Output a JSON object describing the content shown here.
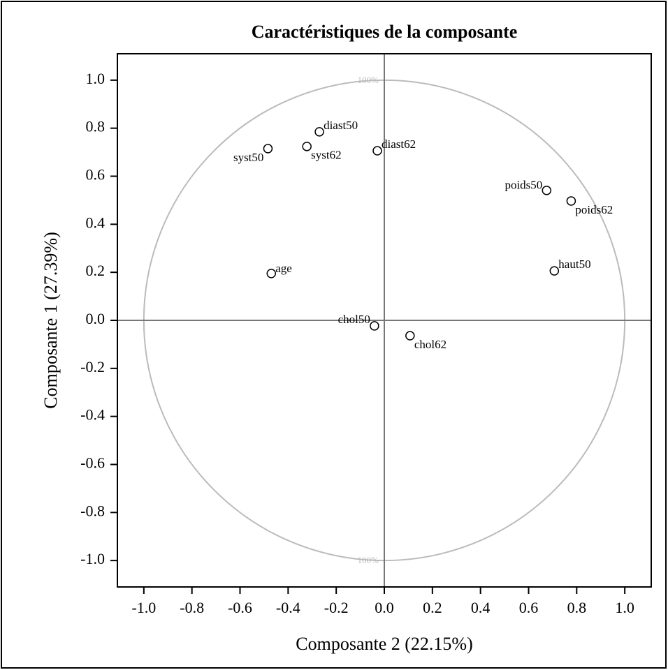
{
  "chart_data": {
    "type": "scatter",
    "title": "Caractéristiques de la composante",
    "xlabel": "Composante 2 (22.15%)",
    "ylabel": "Composante 1 (27.39%)",
    "circle_label": "100%",
    "labels": [
      "syst50",
      "diast50",
      "syst62",
      "diast62",
      "poids50",
      "poids62",
      "age",
      "haut50",
      "chol50",
      "chol62"
    ],
    "x": [
      -0.484,
      -0.27,
      -0.322,
      -0.029,
      0.675,
      0.777,
      -0.47,
      0.707,
      -0.041,
      0.107
    ],
    "y": [
      0.715,
      0.785,
      0.724,
      0.706,
      0.541,
      0.497,
      0.195,
      0.206,
      -0.023,
      -0.064
    ],
    "xlim": [
      -1.11,
      1.11
    ],
    "ylim": [
      -1.11,
      1.11
    ],
    "xticks": [
      {
        "value": -1,
        "label": "-1.0"
      },
      -0.8,
      -0.6,
      -0.4,
      -0.2,
      {
        "value": 0,
        "label": "0.0"
      },
      0.2,
      0.4,
      0.6,
      0.8,
      {
        "value": 1,
        "label": "1.0"
      }
    ],
    "yticks": [
      {
        "value": 1,
        "label": "1.0"
      },
      0.8,
      0.6,
      0.4,
      0.2,
      {
        "value": 0,
        "label": "0.0"
      },
      -0.2,
      -0.4,
      -0.6,
      -0.8,
      {
        "value": -1,
        "label": "-1.0"
      }
    ],
    "marker_color": "#000000",
    "circle_color": "#bbbbbb",
    "axis_line_color": "#777777"
  }
}
